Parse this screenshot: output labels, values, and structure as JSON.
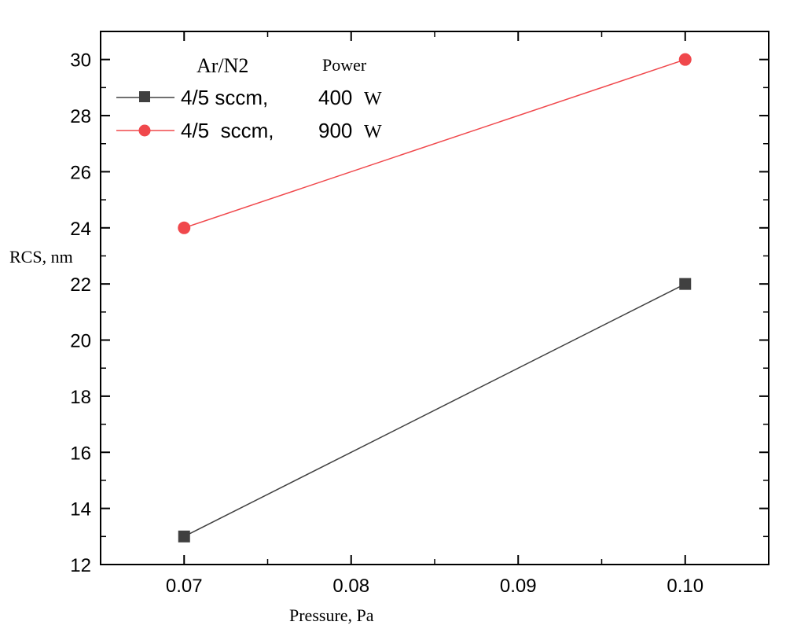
{
  "chart_data": {
    "type": "line",
    "xlabel": "Pressure, Pa",
    "ylabel": "RCS, nm",
    "xlim": [
      0.065,
      0.105
    ],
    "ylim": [
      12,
      31
    ],
    "x_ticks": [
      "0.07",
      "0.08",
      "0.09",
      "0.10"
    ],
    "x_tick_values": [
      0.07,
      0.08,
      0.09,
      0.1
    ],
    "y_ticks": [
      "12",
      "14",
      "16",
      "18",
      "20",
      "22",
      "24",
      "26",
      "28",
      "30"
    ],
    "y_tick_values": [
      12,
      14,
      16,
      18,
      20,
      22,
      24,
      26,
      28,
      30
    ],
    "legend": {
      "header_left": "Ar/N2",
      "header_right": "Power",
      "placement": "top-left"
    },
    "series": [
      {
        "name": "4/5 sccm, 400 W",
        "label_gas": "4/5 sccm,",
        "label_power": "400",
        "label_unit": "W",
        "marker": "square",
        "color": "#404040",
        "x": [
          0.07,
          0.1
        ],
        "y": [
          13,
          22
        ]
      },
      {
        "name": "4/5 sccm, 900 W",
        "label_gas": "4/5  sccm,",
        "label_power": "900",
        "label_unit": "W",
        "marker": "circle",
        "color": "#f0484c",
        "x": [
          0.07,
          0.1
        ],
        "y": [
          24,
          30
        ]
      }
    ]
  }
}
